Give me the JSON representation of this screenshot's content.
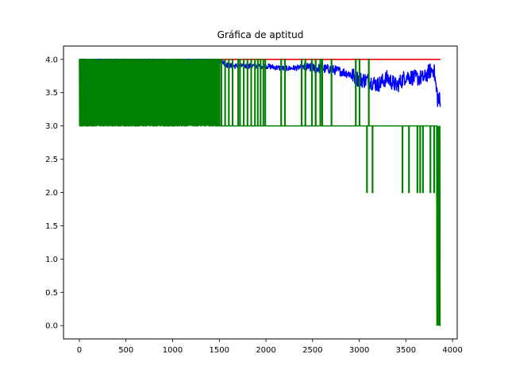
{
  "chart_data": {
    "type": "line",
    "title": "Gráfica de aptitud",
    "xlabel": "",
    "ylabel": "",
    "xlim": [
      -170,
      4050
    ],
    "ylim": [
      -0.2,
      4.2
    ],
    "grid": false,
    "x_ticks": [
      0,
      500,
      1000,
      1500,
      2000,
      2500,
      3000,
      3500,
      4000
    ],
    "x_tick_labels": [
      "0",
      "500",
      "1000",
      "1500",
      "2000",
      "2500",
      "3000",
      "3500",
      "4000"
    ],
    "y_ticks": [
      0.0,
      0.5,
      1.0,
      1.5,
      2.0,
      2.5,
      3.0,
      3.5,
      4.0
    ],
    "y_tick_labels": [
      "0.0",
      "0.5",
      "1.0",
      "1.5",
      "2.0",
      "2.5",
      "3.0",
      "3.5",
      "4.0"
    ],
    "series": [
      {
        "color": "#ff0000",
        "style": "max",
        "x": [
          0,
          3870
        ],
        "y": [
          4.0,
          4.0
        ]
      },
      {
        "color": "#0000ff",
        "style": "mean",
        "x": [
          0,
          1500,
          1600,
          2000,
          2200,
          2400,
          2600,
          2700,
          2800,
          2900,
          3000,
          3100,
          3200,
          3300,
          3400,
          3500,
          3600,
          3700,
          3750,
          3800,
          3830,
          3850,
          3870
        ],
        "y": [
          4.0,
          4.0,
          3.9,
          3.9,
          3.86,
          3.88,
          3.86,
          3.85,
          3.82,
          3.78,
          3.7,
          3.68,
          3.62,
          3.72,
          3.6,
          3.75,
          3.72,
          3.72,
          3.82,
          3.85,
          3.5,
          3.4,
          3.3
        ]
      },
      {
        "color": "#008000",
        "style": "min",
        "x": [
          0,
          3870
        ],
        "y": [
          3.0,
          3.0
        ]
      }
    ]
  },
  "ui": {
    "title": "Gráfica de aptitud"
  }
}
